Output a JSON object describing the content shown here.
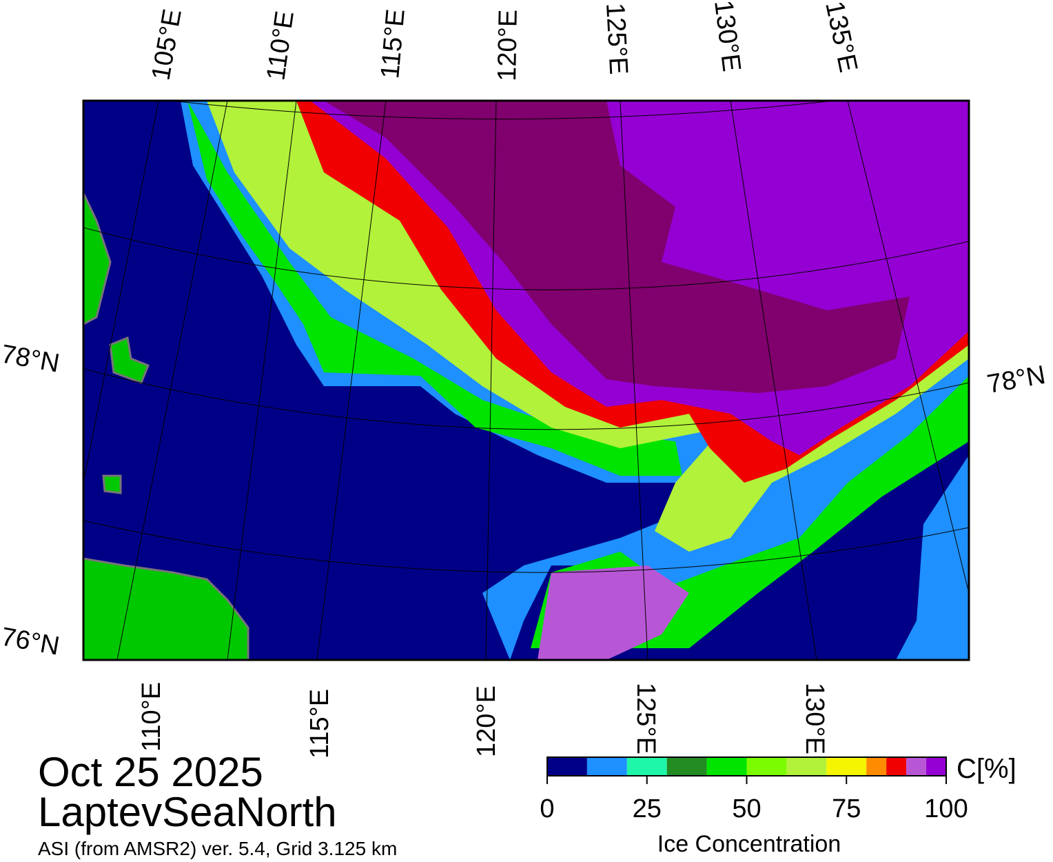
{
  "map": {
    "top_lon_labels": [
      "105°E",
      "110°E",
      "115°E",
      "120°E",
      "125°E",
      "130°E",
      "135°E"
    ],
    "bottom_lon_labels": [
      "110°E",
      "115°E",
      "120°E",
      "125°E",
      "130°E"
    ],
    "left_lat_labels": [
      "78°N",
      "76°N"
    ],
    "right_lat_labels": [
      "78°N"
    ]
  },
  "date": "Oct 25 2025",
  "region": "LaptevSeaNorth",
  "source": "ASI (from AMSR2) ver. 5.4,  Grid 3.125 km",
  "colorbar": {
    "title": "Ice Concentration",
    "unit": "C[%]",
    "range": [
      0,
      100
    ],
    "ticks": [
      0,
      25,
      50,
      75,
      100
    ],
    "bins": [
      0,
      10,
      20,
      30,
      40,
      50,
      60,
      70,
      80,
      85,
      90,
      95,
      100
    ],
    "colors": [
      "#000087",
      "#1e90ff",
      "#1ef7a8",
      "#228b22",
      "#00e400",
      "#7cfc00",
      "#b2f23a",
      "#f5f500",
      "#ff8c00",
      "#f00000",
      "#b857d6",
      "#9400d3"
    ]
  }
}
